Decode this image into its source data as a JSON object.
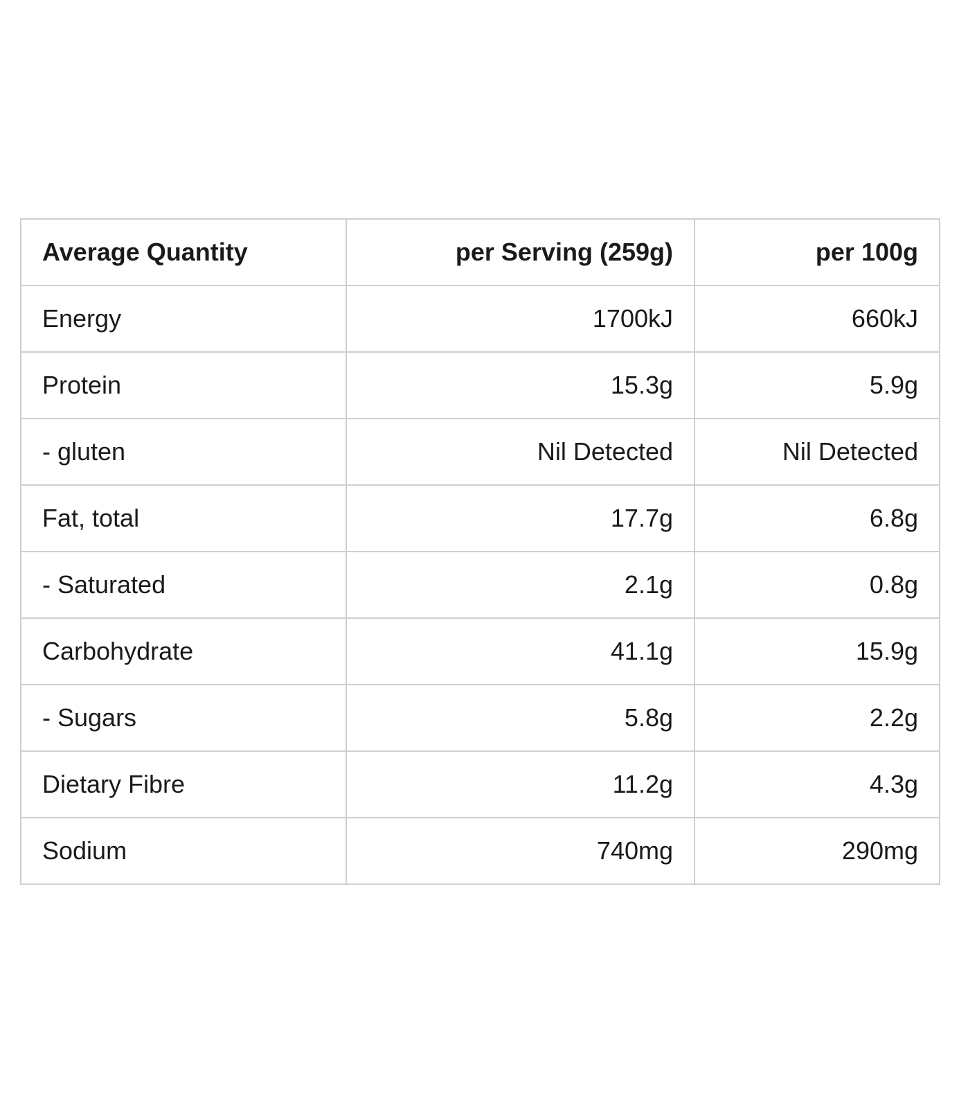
{
  "table": {
    "headers": [
      "Average Quantity",
      "per Serving (259g)",
      "per 100g"
    ],
    "rows": [
      [
        "Energy",
        "1700kJ",
        "660kJ"
      ],
      [
        "Protein",
        "15.3g",
        "5.9g"
      ],
      [
        "- gluten",
        "Nil Detected",
        "Nil Detected"
      ],
      [
        "Fat, total",
        "17.7g",
        "6.8g"
      ],
      [
        "- Saturated",
        "2.1g",
        "0.8g"
      ],
      [
        "Carbohydrate",
        "41.1g",
        "15.9g"
      ],
      [
        "- Sugars",
        "5.8g",
        "2.2g"
      ],
      [
        "Dietary Fibre",
        "11.2g",
        "4.3g"
      ],
      [
        "Sodium",
        "740mg",
        "290mg"
      ]
    ]
  },
  "colors": {
    "border": "#cfcfcf",
    "text": "#1a1a1a",
    "background": "#ffffff"
  }
}
